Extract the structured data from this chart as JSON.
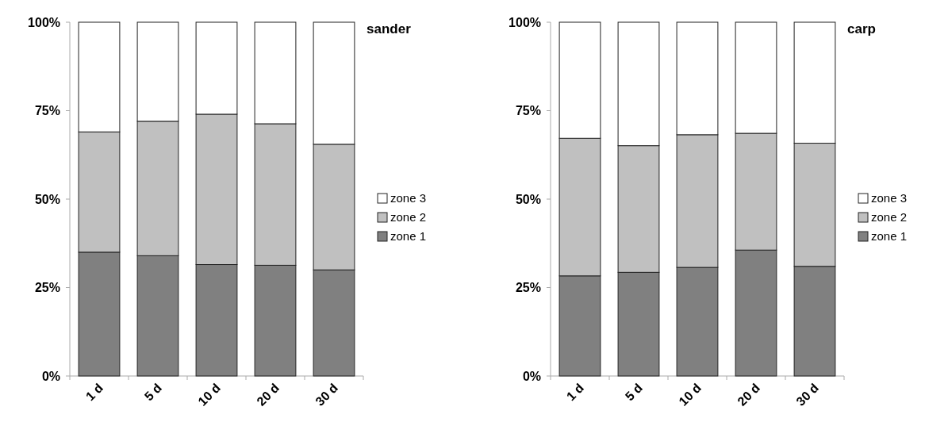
{
  "chart_data": [
    {
      "type": "bar",
      "title": "sander",
      "stacked": true,
      "categories": [
        "1 d",
        "5 d",
        "10 d",
        "20 d",
        "30 d"
      ],
      "ylim": [
        0,
        100
      ],
      "yticks": [
        {
          "value": 0,
          "label": "0%"
        },
        {
          "value": 25,
          "label": "25%"
        },
        {
          "value": 50,
          "label": "50%"
        },
        {
          "value": 75,
          "label": "75%"
        },
        {
          "value": 100,
          "label": "100%"
        }
      ],
      "legend": "right",
      "grid": false,
      "series": [
        {
          "name": "zone 1",
          "color": "#808080",
          "values": [
            35,
            34,
            31.5,
            31.3,
            30
          ]
        },
        {
          "name": "zone 2",
          "color": "#c0c0c0",
          "values": [
            34,
            38,
            42.5,
            40,
            35.5
          ]
        },
        {
          "name": "zone 3",
          "color": "#ffffff",
          "values": [
            31,
            28,
            26,
            28.7,
            34.5
          ]
        }
      ]
    },
    {
      "type": "bar",
      "title": "carp",
      "stacked": true,
      "categories": [
        "1 d",
        "5 d",
        "10 d",
        "20 d",
        "30 d"
      ],
      "ylim": [
        0,
        100
      ],
      "yticks": [
        {
          "value": 0,
          "label": "0%"
        },
        {
          "value": 25,
          "label": "25%"
        },
        {
          "value": 50,
          "label": "50%"
        },
        {
          "value": 75,
          "label": "75%"
        },
        {
          "value": 100,
          "label": "100%"
        }
      ],
      "legend": "right",
      "grid": false,
      "series": [
        {
          "name": "zone 1",
          "color": "#808080",
          "values": [
            28.3,
            29.3,
            30.7,
            35.6,
            31
          ]
        },
        {
          "name": "zone 2",
          "color": "#c0c0c0",
          "values": [
            38.9,
            35.8,
            37.5,
            33,
            34.8
          ]
        },
        {
          "name": "zone 3",
          "color": "#ffffff",
          "values": [
            32.8,
            34.9,
            31.8,
            31.4,
            34.2
          ]
        }
      ]
    }
  ]
}
